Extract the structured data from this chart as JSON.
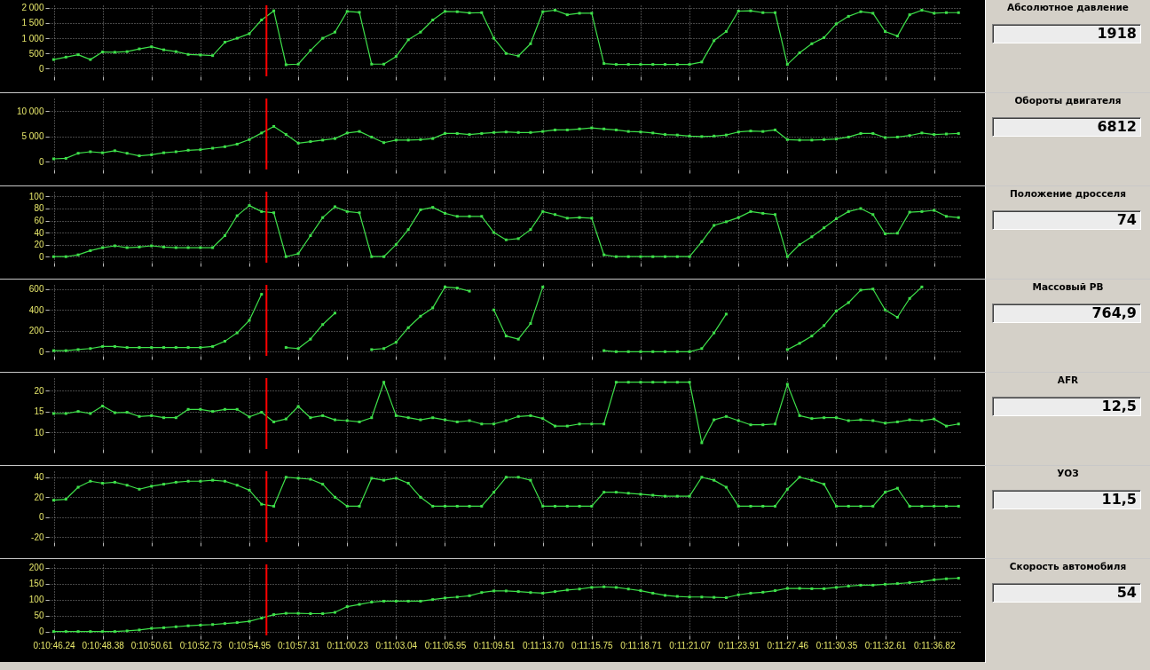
{
  "chart_data": [
    {
      "type": "line",
      "annotations": [
        "Абсолютное давление",
        "1918"
      ],
      "categories": [
        null,
        null,
        null,
        null,
        null,
        null,
        null,
        null,
        null,
        null,
        null,
        null,
        null,
        null,
        null,
        null,
        null,
        null,
        null,
        null,
        null,
        null,
        null,
        null,
        null,
        null,
        null,
        null,
        null,
        null,
        null,
        null,
        null,
        null,
        null,
        null,
        null,
        null,
        null,
        null,
        null,
        null,
        null,
        null,
        null,
        null,
        null,
        null,
        null,
        null,
        null,
        null,
        null,
        null,
        null,
        null,
        null,
        null,
        null,
        null,
        null,
        null,
        null,
        null,
        null,
        null,
        null,
        null,
        null,
        null,
        null,
        null,
        null,
        null,
        null
      ],
      "series": [
        {
          "color": "#3ee04a",
          "values": [
            300,
            380,
            460,
            300,
            550,
            540,
            560,
            650,
            720,
            620,
            560,
            470,
            450,
            430,
            870,
            1000,
            1150,
            1600,
            1900,
            130,
            150,
            600,
            1000,
            1200,
            1880,
            1850,
            150,
            150,
            400,
            950,
            1200,
            1600,
            1880,
            1870,
            1830,
            1840,
            1000,
            500,
            420,
            820,
            1870,
            1920,
            1770,
            1820,
            1820,
            170,
            140,
            140,
            140,
            140,
            140,
            140,
            140,
            220,
            920,
            1220,
            1890,
            1900,
            1840,
            1840,
            140,
            520,
            820,
            1020,
            1470,
            1720,
            1870,
            1820,
            1220,
            1070,
            1770,
            1920,
            1820,
            1840,
            1840
          ]
        }
      ],
      "ylim": [
        -250,
        2080
      ],
      "yticks": [
        0,
        500,
        {
          "value": 1000,
          "label": "1 000"
        },
        {
          "value": 1500,
          "label": "1 500"
        },
        {
          "value": 2000,
          "label": "2 000"
        }
      ],
      "grid": true,
      "marker": "square"
    },
    {
      "type": "line",
      "annotations": [
        "Обороты двигателя",
        "6812"
      ],
      "categories": [
        null,
        null,
        null,
        null,
        null,
        null,
        null,
        null,
        null,
        null,
        null,
        null,
        null,
        null,
        null,
        null,
        null,
        null,
        null,
        null,
        null,
        null,
        null,
        null,
        null,
        null,
        null,
        null,
        null,
        null,
        null,
        null,
        null,
        null,
        null,
        null,
        null,
        null,
        null,
        null,
        null,
        null,
        null,
        null,
        null,
        null,
        null,
        null,
        null,
        null,
        null,
        null,
        null,
        null,
        null,
        null,
        null,
        null,
        null,
        null,
        null,
        null,
        null,
        null,
        null,
        null,
        null,
        null,
        null,
        null,
        null,
        null,
        null,
        null,
        null
      ],
      "series": [
        {
          "color": "#3ee04a",
          "values": [
            600,
            700,
            1700,
            2000,
            1800,
            2200,
            1700,
            1200,
            1400,
            1800,
            2000,
            2300,
            2400,
            2700,
            3000,
            3500,
            4400,
            5700,
            7000,
            5400,
            3700,
            4000,
            4300,
            4600,
            5700,
            6000,
            4900,
            3800,
            4300,
            4300,
            4400,
            4600,
            5600,
            5600,
            5400,
            5600,
            5800,
            5900,
            5800,
            5800,
            6000,
            6300,
            6300,
            6500,
            6700,
            6500,
            6300,
            6000,
            5900,
            5700,
            5400,
            5300,
            5100,
            5000,
            5100,
            5300,
            5900,
            6100,
            6000,
            6300,
            4400,
            4300,
            4300,
            4400,
            4500,
            4900,
            5600,
            5600,
            4800,
            4900,
            5200,
            5700,
            5400,
            5500,
            5600
          ]
        }
      ],
      "ylim": [
        -1500,
        12500
      ],
      "yticks": [
        0,
        {
          "value": 5000,
          "label": "5 000"
        },
        {
          "value": 10000,
          "label": "10 000"
        }
      ],
      "grid": true,
      "marker": "square"
    },
    {
      "type": "line",
      "annotations": [
        "Положение дросселя",
        "74"
      ],
      "categories": [
        null,
        null,
        null,
        null,
        null,
        null,
        null,
        null,
        null,
        null,
        null,
        null,
        null,
        null,
        null,
        null,
        null,
        null,
        null,
        null,
        null,
        null,
        null,
        null,
        null,
        null,
        null,
        null,
        null,
        null,
        null,
        null,
        null,
        null,
        null,
        null,
        null,
        null,
        null,
        null,
        null,
        null,
        null,
        null,
        null,
        null,
        null,
        null,
        null,
        null,
        null,
        null,
        null,
        null,
        null,
        null,
        null,
        null,
        null,
        null,
        null,
        null,
        null,
        null,
        null,
        null,
        null,
        null,
        null,
        null,
        null,
        null,
        null,
        null,
        null
      ],
      "series": [
        {
          "color": "#3ee04a",
          "values": [
            0,
            0,
            3,
            10,
            15,
            18,
            15,
            16,
            18,
            16,
            15,
            15,
            15,
            15,
            35,
            68,
            85,
            75,
            73,
            0,
            5,
            35,
            65,
            83,
            75,
            73,
            0,
            0,
            20,
            45,
            78,
            82,
            72,
            67,
            67,
            67,
            40,
            28,
            30,
            45,
            75,
            70,
            64,
            65,
            64,
            3,
            0,
            0,
            0,
            0,
            0,
            0,
            0,
            25,
            52,
            58,
            65,
            75,
            72,
            70,
            0,
            20,
            33,
            48,
            63,
            75,
            80,
            70,
            38,
            39,
            74,
            75,
            77,
            67,
            65
          ]
        }
      ],
      "ylim": [
        -10,
        108
      ],
      "yticks": [
        0,
        20,
        40,
        60,
        80,
        100
      ],
      "grid": true,
      "marker": "square"
    },
    {
      "type": "line",
      "annotations": [
        "Массовый РВ",
        "764,9"
      ],
      "categories": [
        null,
        null,
        null,
        null,
        null,
        null,
        null,
        null,
        null,
        null,
        null,
        null,
        null,
        null,
        null,
        null,
        null,
        null,
        null,
        null,
        null,
        null,
        null,
        null,
        null,
        null,
        null,
        null,
        null,
        null,
        null,
        null,
        null,
        null,
        null,
        null,
        null,
        null,
        null,
        null,
        null,
        null,
        null,
        null,
        null,
        null,
        null,
        null,
        null,
        null,
        null,
        null,
        null,
        null,
        null,
        null,
        null,
        null,
        null,
        null,
        null,
        null,
        null,
        null,
        null,
        null,
        null,
        null,
        null,
        null,
        null,
        null,
        null,
        null,
        null
      ],
      "series": [
        {
          "color": "#3ee04a",
          "values": [
            10,
            10,
            20,
            30,
            50,
            50,
            40,
            40,
            40,
            40,
            40,
            40,
            40,
            50,
            100,
            180,
            300,
            550,
            null,
            40,
            30,
            120,
            260,
            370,
            null,
            null,
            20,
            30,
            90,
            230,
            340,
            420,
            620,
            610,
            580,
            null,
            400,
            150,
            120,
            270,
            620,
            null,
            null,
            null,
            null,
            10,
            0,
            0,
            0,
            0,
            0,
            0,
            0,
            30,
            180,
            360,
            null,
            null,
            null,
            null,
            20,
            80,
            150,
            250,
            390,
            470,
            590,
            600,
            400,
            330,
            510,
            620,
            null,
            null,
            null
          ]
        }
      ],
      "ylim": [
        -40,
        640
      ],
      "yticks": [
        0,
        200,
        400,
        600
      ],
      "grid": true,
      "marker": "square"
    },
    {
      "type": "line",
      "annotations": [
        "AFR",
        "12,5"
      ],
      "categories": [
        null,
        null,
        null,
        null,
        null,
        null,
        null,
        null,
        null,
        null,
        null,
        null,
        null,
        null,
        null,
        null,
        null,
        null,
        null,
        null,
        null,
        null,
        null,
        null,
        null,
        null,
        null,
        null,
        null,
        null,
        null,
        null,
        null,
        null,
        null,
        null,
        null,
        null,
        null,
        null,
        null,
        null,
        null,
        null,
        null,
        null,
        null,
        null,
        null,
        null,
        null,
        null,
        null,
        null,
        null,
        null,
        null,
        null,
        null,
        null,
        null,
        null,
        null,
        null,
        null,
        null,
        null,
        null,
        null,
        null,
        null,
        null,
        null,
        null,
        null
      ],
      "series": [
        {
          "color": "#3ee04a",
          "values": [
            14.5,
            14.5,
            15,
            14.5,
            16.3,
            14.7,
            14.8,
            13.8,
            14,
            13.5,
            13.5,
            15.5,
            15.5,
            15,
            15.5,
            15.5,
            13.7,
            14.8,
            12.5,
            13.2,
            16.2,
            13.5,
            14,
            13,
            12.8,
            12.5,
            13.5,
            22,
            14,
            13.5,
            13,
            13.5,
            13,
            12.5,
            12.8,
            12,
            12,
            12.8,
            13.8,
            14,
            13.3,
            11.5,
            11.5,
            12,
            12,
            12,
            22,
            22,
            22,
            22,
            22,
            22,
            22,
            7.5,
            13,
            13.8,
            12.8,
            11.8,
            11.8,
            12,
            21.5,
            14,
            13.3,
            13.5,
            13.5,
            12.8,
            13,
            12.8,
            12.2,
            12.5,
            13,
            12.8,
            13.2,
            11.5,
            12
          ]
        }
      ],
      "ylim": [
        6,
        23
      ],
      "yticks": [
        10,
        15,
        20
      ],
      "grid": true,
      "marker": "square"
    },
    {
      "type": "line",
      "annotations": [
        "УОЗ",
        "11,5"
      ],
      "categories": [
        null,
        null,
        null,
        null,
        null,
        null,
        null,
        null,
        null,
        null,
        null,
        null,
        null,
        null,
        null,
        null,
        null,
        null,
        null,
        null,
        null,
        null,
        null,
        null,
        null,
        null,
        null,
        null,
        null,
        null,
        null,
        null,
        null,
        null,
        null,
        null,
        null,
        null,
        null,
        null,
        null,
        null,
        null,
        null,
        null,
        null,
        null,
        null,
        null,
        null,
        null,
        null,
        null,
        null,
        null,
        null,
        null,
        null,
        null,
        null,
        null,
        null,
        null,
        null,
        null,
        null,
        null,
        null,
        null,
        null,
        null,
        null,
        null,
        null,
        null
      ],
      "series": [
        {
          "color": "#3ee04a",
          "values": [
            17,
            18,
            30,
            36,
            34,
            35,
            32,
            28,
            31,
            33,
            35,
            36,
            36,
            37,
            36,
            32,
            27,
            13,
            11,
            40,
            39,
            38,
            33,
            20,
            11,
            11,
            39,
            37,
            39,
            34,
            20,
            11,
            11,
            11,
            11,
            11,
            25,
            40,
            40,
            37,
            11,
            11,
            11,
            11,
            11,
            25,
            25,
            24,
            23,
            22,
            21,
            21,
            21,
            40,
            37,
            30,
            11,
            11,
            11,
            11,
            28,
            40,
            37,
            33,
            11,
            11,
            11,
            11,
            25,
            29,
            11,
            11,
            11,
            11,
            11
          ]
        }
      ],
      "ylim": [
        -25,
        46
      ],
      "yticks": [
        -20,
        0,
        20,
        40
      ],
      "grid": true,
      "marker": "square"
    },
    {
      "type": "line",
      "annotations": [
        "Скорость автомобиля",
        "54"
      ],
      "categories": [
        "0:10:46.24",
        null,
        null,
        null,
        "0:10:48.38",
        null,
        null,
        null,
        "0:10:50.61",
        null,
        null,
        null,
        "0:10:52.73",
        null,
        null,
        null,
        "0:10:54.95",
        null,
        null,
        null,
        "0:10:57.31",
        null,
        null,
        null,
        "0:11:00.23",
        null,
        null,
        null,
        "0:11:03.04",
        null,
        null,
        null,
        "0:11:05.95",
        null,
        null,
        null,
        "0:11:09.51",
        null,
        null,
        null,
        "0:11:13.70",
        null,
        null,
        null,
        "0:11:15.75",
        null,
        null,
        null,
        "0:11:18.71",
        null,
        null,
        null,
        "0:11:21.07",
        null,
        null,
        null,
        "0:11:23.91",
        null,
        null,
        null,
        "0:11:27.46",
        null,
        null,
        null,
        "0:11:30.35",
        null,
        null,
        null,
        "0:11:32.61",
        null,
        null,
        null,
        "0:11:36.82",
        null,
        null
      ],
      "series": [
        {
          "color": "#3ee04a",
          "values": [
            0,
            0,
            0,
            0,
            0,
            0,
            2,
            5,
            10,
            12,
            15,
            18,
            20,
            22,
            25,
            28,
            32,
            42,
            53,
            57,
            57,
            56,
            56,
            60,
            78,
            85,
            92,
            95,
            95,
            95,
            95,
            100,
            105,
            108,
            112,
            122,
            127,
            127,
            125,
            122,
            120,
            125,
            130,
            133,
            138,
            140,
            138,
            133,
            128,
            120,
            113,
            110,
            108,
            108,
            107,
            106,
            115,
            120,
            123,
            128,
            135,
            135,
            134,
            134,
            138,
            142,
            145,
            145,
            148,
            150,
            153,
            156,
            162,
            165,
            167
          ]
        }
      ],
      "ylim": [
        -12,
        210
      ],
      "yticks": [
        0,
        50,
        100,
        150,
        200
      ],
      "grid": true,
      "marker": "square"
    }
  ]
}
